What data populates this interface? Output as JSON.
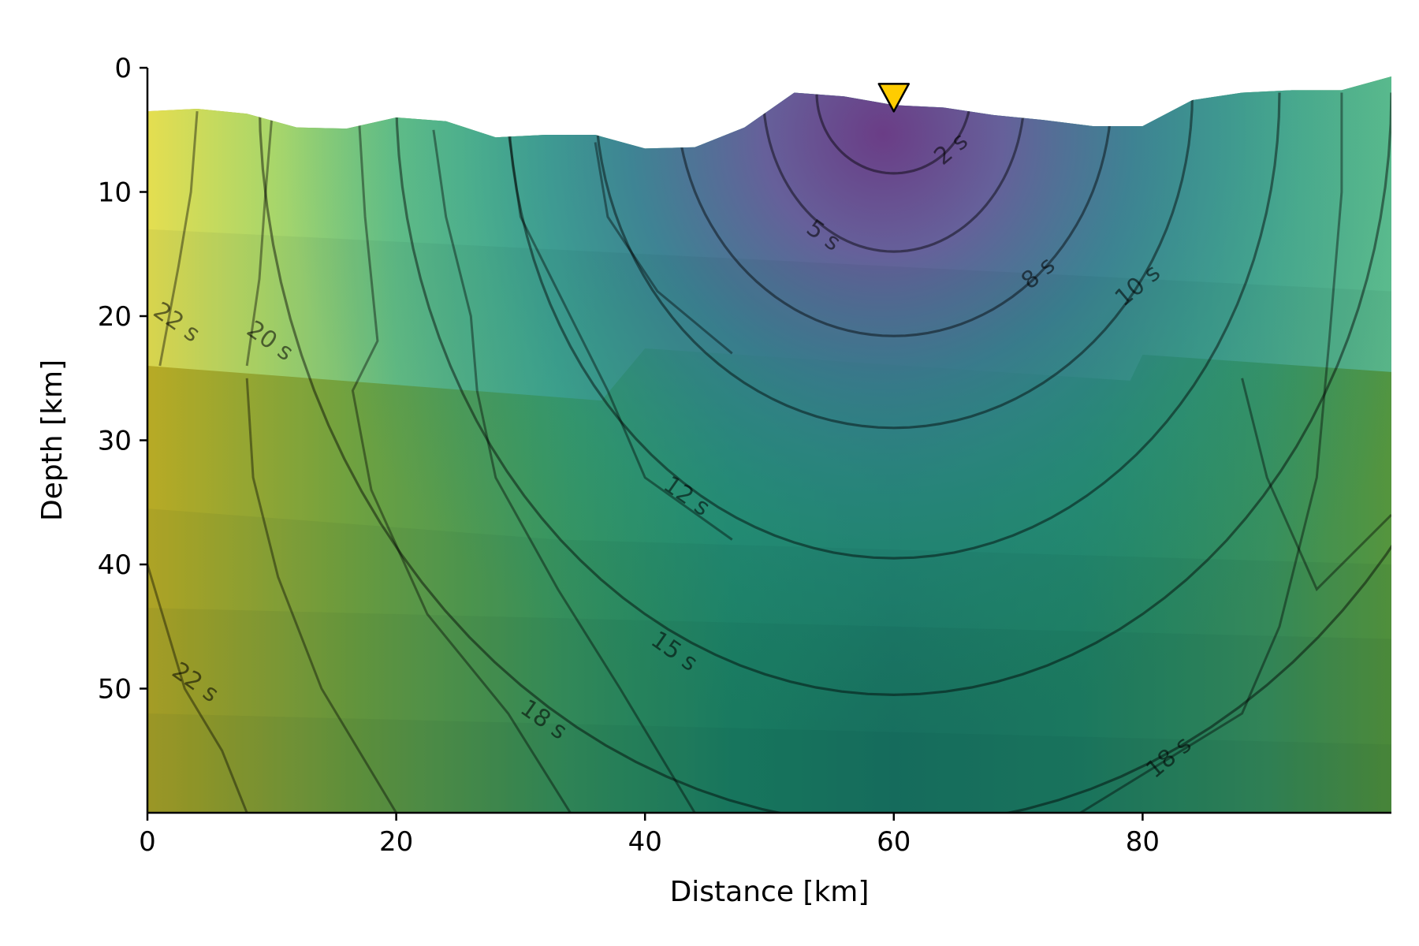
{
  "chart_data": {
    "type": "heatmap",
    "title": "",
    "xlabel": "Distance [km]",
    "ylabel": "Depth [km]",
    "xlim": [
      0,
      100
    ],
    "ylim": [
      60,
      0
    ],
    "x_ticks": [
      0,
      20,
      40,
      60,
      80
    ],
    "y_ticks": [
      0,
      10,
      20,
      30,
      40,
      50
    ],
    "grid": false,
    "colormap": "viridis",
    "station": {
      "x": 60,
      "depth": 2.5,
      "color": "#ffcc00"
    },
    "topography": {
      "x": [
        0,
        4,
        8,
        12,
        16,
        20,
        24,
        28,
        32,
        36,
        40,
        44,
        48,
        52,
        56,
        60,
        64,
        68,
        72,
        76,
        80,
        84,
        88,
        92,
        96,
        100
      ],
      "depth": [
        3.5,
        3.3,
        3.7,
        4.8,
        4.9,
        4.0,
        4.3,
        5.6,
        5.4,
        5.4,
        6.5,
        6.4,
        4.8,
        2.0,
        2.3,
        3.0,
        3.2,
        3.8,
        4.2,
        4.7,
        4.7,
        2.6,
        2.0,
        1.8,
        1.8,
        0.7
      ]
    },
    "contour_levels_s": [
      2,
      5,
      8,
      10,
      12,
      15,
      18,
      20,
      22
    ],
    "contour_labels": [
      {
        "text": "2 s",
        "x": 65,
        "depth": 7
      },
      {
        "text": "5 s",
        "x": 54,
        "depth": 14
      },
      {
        "text": "8 s",
        "x": 72,
        "depth": 17
      },
      {
        "text": "10 s",
        "x": 80,
        "depth": 18
      },
      {
        "text": "12 s",
        "x": 43,
        "depth": 35
      },
      {
        "text": "15 s",
        "x": 42,
        "depth": 47.5
      },
      {
        "text": "18 s",
        "x": 31.5,
        "depth": 53
      },
      {
        "text": "18 s",
        "x": 82.5,
        "depth": 56
      },
      {
        "text": "20 s",
        "x": 9.5,
        "depth": 22.5
      },
      {
        "text": "22 s",
        "x": 2,
        "depth": 21
      },
      {
        "text": "22 s",
        "x": 3.5,
        "depth": 50
      }
    ]
  }
}
